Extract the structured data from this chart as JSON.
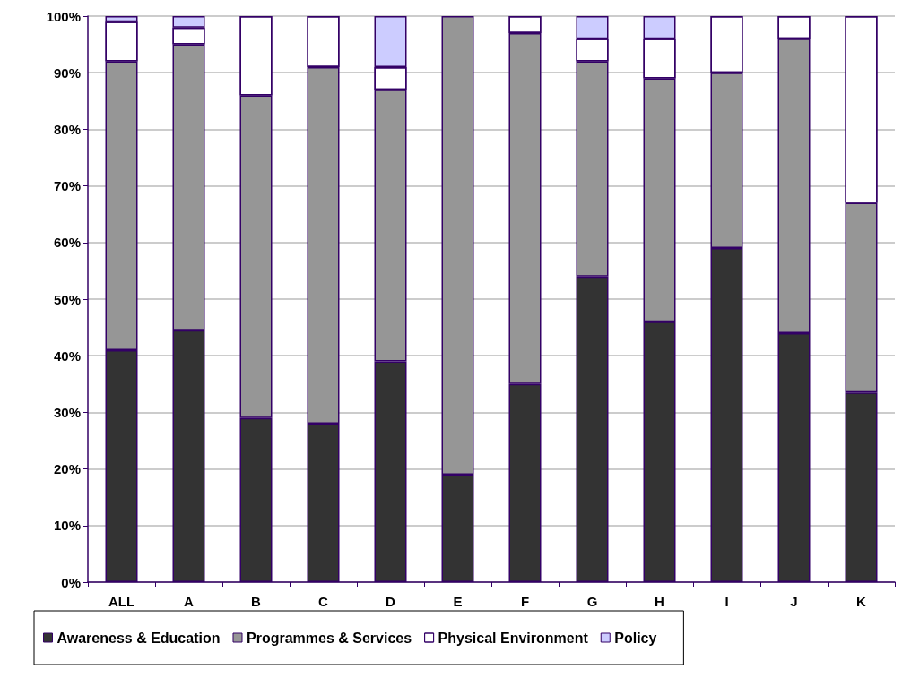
{
  "chart_data": {
    "type": "bar",
    "stacked": true,
    "categories": [
      "ALL",
      "A",
      "B",
      "C",
      "D",
      "E",
      "F",
      "G",
      "H",
      "I",
      "J",
      "K"
    ],
    "series": [
      {
        "name": "Awareness & Education",
        "color": "#333333",
        "values": [
          41,
          44.5,
          29,
          28,
          39,
          19,
          35,
          54,
          46,
          59,
          44,
          33.5
        ]
      },
      {
        "name": "Programmes & Services",
        "color": "#969696",
        "values": [
          51,
          50.5,
          57,
          63,
          48,
          81,
          62,
          38,
          43,
          31,
          52,
          33.5
        ]
      },
      {
        "name": "Physical Environment",
        "color": "#ffffff",
        "values": [
          7,
          3,
          14,
          9,
          4,
          0,
          3,
          4,
          7,
          10,
          4,
          33
        ]
      },
      {
        "name": "Policy",
        "color": "#ccccff",
        "values": [
          1,
          2,
          0,
          0,
          9,
          0,
          0,
          4,
          4,
          0,
          0,
          0
        ]
      }
    ],
    "ylim": [
      0,
      100
    ],
    "yticks": [
      {
        "value": 0,
        "label": "0%"
      },
      {
        "value": 10,
        "label": "10%"
      },
      {
        "value": 20,
        "label": "20%"
      },
      {
        "value": 30,
        "label": "30%"
      },
      {
        "value": 40,
        "label": "40%"
      },
      {
        "value": 50,
        "label": "50%"
      },
      {
        "value": 60,
        "label": "60%"
      },
      {
        "value": 70,
        "label": "70%"
      },
      {
        "value": 80,
        "label": "80%"
      },
      {
        "value": 90,
        "label": "90%"
      },
      {
        "value": 100,
        "label": "100%"
      }
    ],
    "grid": "y",
    "legend": "bottom"
  }
}
